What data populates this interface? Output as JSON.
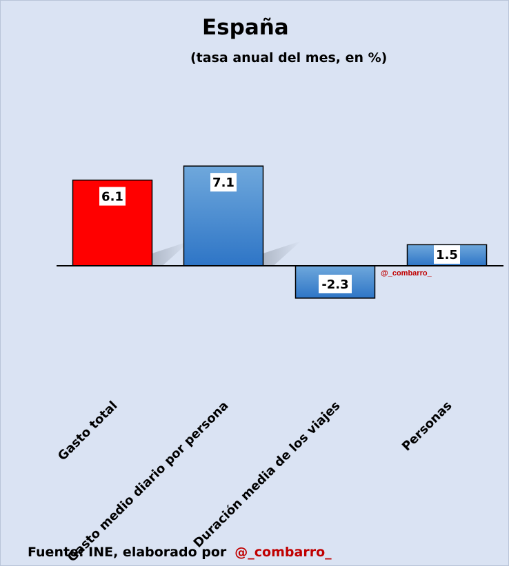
{
  "chart_data": {
    "type": "bar",
    "title": "España",
    "subtitle": "(tasa anual del mes, en %)",
    "categories": [
      "Gasto total",
      "Gasto medio diario por persona",
      "Duración media de los viajes",
      "Personas"
    ],
    "values": [
      6.1,
      7.1,
      -2.3,
      1.5
    ],
    "value_labels": [
      "6.1",
      "7.1",
      "-2.3",
      "1.5"
    ],
    "colors": [
      "#ff0000",
      "#5b9bd5",
      "#5b9bd5",
      "#5b9bd5"
    ],
    "highlight_color": "#ff0000",
    "series_color": "#5b9bd5",
    "watermark": "@_combarro_",
    "xlabel": "",
    "ylabel": "",
    "grid": false,
    "legend": "none"
  },
  "footer": {
    "source": "Fuente: INE, elaborado por",
    "handle": "@_combarro_"
  }
}
